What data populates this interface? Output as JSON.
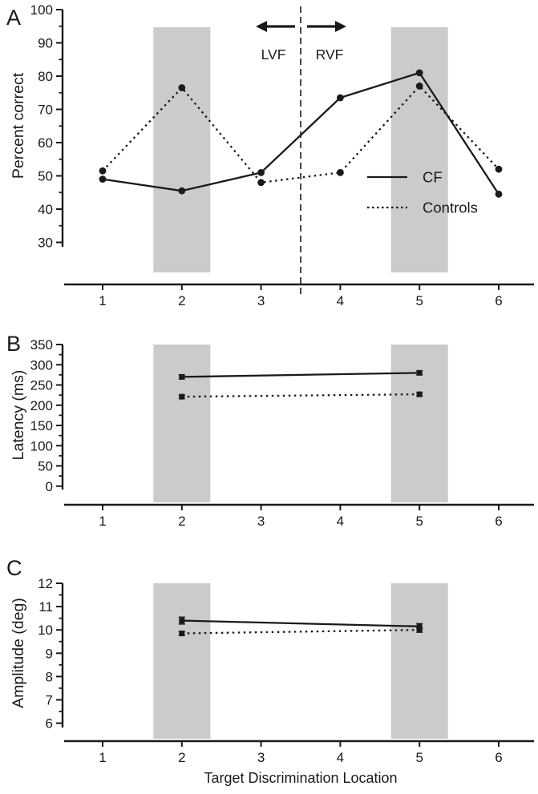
{
  "figure": {
    "type": "multi-panel-line-figure",
    "panels": [
      "A",
      "B",
      "C"
    ],
    "xlabel": "Target Discrimination Location",
    "xticks": [
      "1",
      "2",
      "3",
      "4",
      "5",
      "6"
    ],
    "colors": {
      "line": "#1a1a1a",
      "shaded_band": "#cbcbcb",
      "background": "#ffffff"
    },
    "legend": {
      "items": [
        {
          "label": "CF",
          "style": "solid"
        },
        {
          "label": "Controls",
          "style": "dotted"
        }
      ]
    },
    "visual_field": {
      "left_label": "LVF",
      "right_label": "RVF",
      "divider_x": 3.5
    }
  },
  "chart_data": [
    {
      "type": "line",
      "panel": "A",
      "ylabel": "Percent correct",
      "ylim": [
        30,
        100
      ],
      "yticks": [
        30,
        40,
        50,
        60,
        70,
        80,
        90,
        100
      ],
      "x": [
        1,
        2,
        3,
        4,
        5,
        6
      ],
      "series": [
        {
          "name": "CF",
          "style": "solid",
          "marker": "circle",
          "values": [
            49,
            45.5,
            51,
            73.5,
            81,
            44.5
          ]
        },
        {
          "name": "Controls",
          "style": "dotted",
          "marker": "circle",
          "values": [
            51.5,
            76.5,
            48,
            51,
            77,
            52
          ]
        }
      ],
      "shaded_x": [
        2,
        5
      ],
      "divider_x": 3.5,
      "grid": false,
      "legend_position": "right-middle"
    },
    {
      "type": "line",
      "panel": "B",
      "ylabel": "Latency (ms)",
      "ylim": [
        0,
        350
      ],
      "yticks": [
        0,
        50,
        100,
        150,
        200,
        250,
        300,
        350
      ],
      "x": [
        2,
        5
      ],
      "series": [
        {
          "name": "CF",
          "style": "solid",
          "marker": "square",
          "values": [
            270,
            280
          ],
          "errors": [
            5,
            5
          ]
        },
        {
          "name": "Controls",
          "style": "dotted",
          "marker": "square",
          "values": [
            221,
            227
          ],
          "errors": [
            4,
            4
          ]
        }
      ],
      "shaded_x": [
        2,
        5
      ],
      "grid": false
    },
    {
      "type": "line",
      "panel": "C",
      "ylabel": "Amplitude (deg)",
      "ylim": [
        6,
        12
      ],
      "yticks": [
        6,
        7,
        8,
        9,
        10,
        11,
        12
      ],
      "x": [
        2,
        5
      ],
      "series": [
        {
          "name": "CF",
          "style": "solid",
          "marker": "square",
          "values": [
            10.4,
            10.15
          ],
          "errors": [
            0.15,
            0.12
          ]
        },
        {
          "name": "Controls",
          "style": "dotted",
          "marker": "square",
          "values": [
            9.85,
            10.0
          ],
          "errors": [
            0.08,
            0.1
          ]
        }
      ],
      "shaded_x": [
        2,
        5
      ],
      "grid": false
    }
  ]
}
